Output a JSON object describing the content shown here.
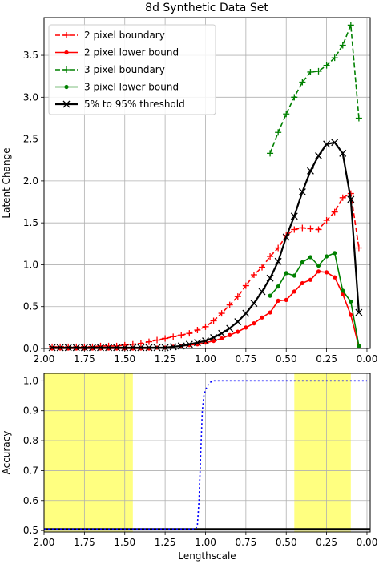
{
  "chart_data": [
    {
      "type": "line",
      "title": "8d Synthetic Data Set",
      "xlabel": "",
      "ylabel": "Latent Change",
      "xlim": [
        2.0,
        -0.02
      ],
      "ylim": [
        0,
        3.95
      ],
      "x_ticks": [
        "2.00",
        "1.75",
        "1.50",
        "1.25",
        "1.00",
        "0.75",
        "0.50",
        "0.25",
        "0.00"
      ],
      "y_ticks": [
        "0.0",
        "0.5",
        "1.0",
        "1.5",
        "2.0",
        "2.5",
        "3.0",
        "3.5"
      ],
      "grid": true,
      "legend_position": "upper-left",
      "series": [
        {
          "name": "2 pixel boundary",
          "color": "#ff0000",
          "style": "dashed",
          "marker": "plus",
          "x": [
            1.95,
            1.9,
            1.85,
            1.8,
            1.75,
            1.7,
            1.65,
            1.6,
            1.55,
            1.5,
            1.45,
            1.4,
            1.35,
            1.3,
            1.25,
            1.2,
            1.15,
            1.1,
            1.05,
            1.0,
            0.95,
            0.9,
            0.85,
            0.8,
            0.75,
            0.7,
            0.65,
            0.6,
            0.55,
            0.5,
            0.45,
            0.4,
            0.35,
            0.3,
            0.25,
            0.2,
            0.15,
            0.1,
            0.05
          ],
          "y": [
            0.02,
            0.02,
            0.02,
            0.02,
            0.02,
            0.02,
            0.03,
            0.03,
            0.03,
            0.04,
            0.05,
            0.06,
            0.08,
            0.1,
            0.12,
            0.14,
            0.16,
            0.18,
            0.22,
            0.26,
            0.33,
            0.42,
            0.52,
            0.62,
            0.75,
            0.88,
            0.97,
            1.1,
            1.2,
            1.35,
            1.42,
            1.44,
            1.43,
            1.42,
            1.53,
            1.63,
            1.8,
            1.85,
            1.2
          ]
        },
        {
          "name": "2 pixel lower bound",
          "color": "#ff0000",
          "style": "solid",
          "marker": "dot",
          "x": [
            1.95,
            1.9,
            1.85,
            1.8,
            1.75,
            1.7,
            1.65,
            1.6,
            1.55,
            1.5,
            1.45,
            1.4,
            1.35,
            1.3,
            1.25,
            1.2,
            1.15,
            1.1,
            1.05,
            1.0,
            0.95,
            0.9,
            0.85,
            0.8,
            0.75,
            0.7,
            0.65,
            0.6,
            0.55,
            0.5,
            0.45,
            0.4,
            0.35,
            0.3,
            0.25,
            0.2,
            0.15,
            0.1,
            0.05
          ],
          "y": [
            0.0,
            0.0,
            0.0,
            0.0,
            0.0,
            0.0,
            0.0,
            0.0,
            0.0,
            0.0,
            0.0,
            0.0,
            0.0,
            0.01,
            0.01,
            0.02,
            0.03,
            0.04,
            0.05,
            0.07,
            0.09,
            0.12,
            0.16,
            0.2,
            0.25,
            0.3,
            0.37,
            0.43,
            0.57,
            0.58,
            0.68,
            0.78,
            0.82,
            0.92,
            0.91,
            0.85,
            0.65,
            0.4,
            0.02
          ]
        },
        {
          "name": "3 pixel boundary",
          "color": "#008000",
          "style": "dashed",
          "marker": "plus",
          "x": [
            0.6,
            0.55,
            0.5,
            0.45,
            0.4,
            0.35,
            0.3,
            0.25,
            0.2,
            0.15,
            0.1,
            0.05
          ],
          "y": [
            2.33,
            2.58,
            2.8,
            3.0,
            3.18,
            3.3,
            3.31,
            3.38,
            3.47,
            3.62,
            3.86,
            2.75
          ]
        },
        {
          "name": "3 pixel lower bound",
          "color": "#008000",
          "style": "solid",
          "marker": "dot",
          "x": [
            0.6,
            0.55,
            0.5,
            0.45,
            0.4,
            0.35,
            0.3,
            0.25,
            0.2,
            0.15,
            0.1,
            0.05
          ],
          "y": [
            0.63,
            0.74,
            0.9,
            0.87,
            1.03,
            1.09,
            0.99,
            1.1,
            1.14,
            0.69,
            0.56,
            0.03
          ]
        },
        {
          "name": "5% to 95% threshold",
          "color": "#000000",
          "style": "solid",
          "marker": "x",
          "x": [
            1.95,
            1.9,
            1.85,
            1.8,
            1.75,
            1.7,
            1.65,
            1.6,
            1.55,
            1.5,
            1.45,
            1.4,
            1.35,
            1.3,
            1.25,
            1.2,
            1.15,
            1.1,
            1.05,
            1.0,
            0.95,
            0.9,
            0.85,
            0.8,
            0.75,
            0.7,
            0.65,
            0.6,
            0.55,
            0.5,
            0.45,
            0.4,
            0.35,
            0.3,
            0.25,
            0.2,
            0.15,
            0.1,
            0.05
          ],
          "y": [
            0.01,
            0.01,
            0.01,
            0.01,
            0.01,
            0.01,
            0.01,
            0.01,
            0.01,
            0.01,
            0.01,
            0.01,
            0.01,
            0.01,
            0.01,
            0.02,
            0.03,
            0.05,
            0.07,
            0.09,
            0.13,
            0.18,
            0.24,
            0.32,
            0.42,
            0.54,
            0.68,
            0.84,
            1.04,
            1.33,
            1.58,
            1.87,
            2.12,
            2.3,
            2.44,
            2.46,
            2.33,
            1.78,
            0.43
          ]
        }
      ]
    },
    {
      "type": "line",
      "title": "",
      "xlabel": "Lengthscale",
      "ylabel": "Accuracy",
      "xlim": [
        2.0,
        -0.02
      ],
      "ylim": [
        0.495,
        1.025
      ],
      "x_ticks": [
        "2.00",
        "1.75",
        "1.50",
        "1.25",
        "1.00",
        "0.75",
        "0.50",
        "0.25",
        "0.00"
      ],
      "y_ticks": [
        "0.5",
        "0.6",
        "0.7",
        "0.8",
        "0.9",
        "1.0"
      ],
      "grid": true,
      "shaded_regions": [
        {
          "x_from": 2.0,
          "x_to": 1.45,
          "color": "#ffff80"
        },
        {
          "x_from": 0.45,
          "x_to": 0.1,
          "color": "#ffff80"
        }
      ],
      "hlines": [
        {
          "y": 0.505,
          "color": "#000000"
        }
      ],
      "series": [
        {
          "color": "#0000ff",
          "style": "dotted",
          "x": [
            2.0,
            1.8,
            1.6,
            1.4,
            1.2,
            1.06,
            1.05,
            1.04,
            1.03,
            1.02,
            1.01,
            1.0,
            0.99,
            0.98,
            0.97,
            0.95,
            0.9,
            0.8,
            0.6,
            0.4,
            0.2,
            0.1,
            0.0
          ],
          "y": [
            0.505,
            0.505,
            0.505,
            0.505,
            0.505,
            0.505,
            0.52,
            0.6,
            0.75,
            0.9,
            0.95,
            0.97,
            0.98,
            0.99,
            0.995,
            1.0,
            1.0,
            1.0,
            1.0,
            1.0,
            1.0,
            1.0,
            1.0
          ]
        }
      ]
    }
  ]
}
